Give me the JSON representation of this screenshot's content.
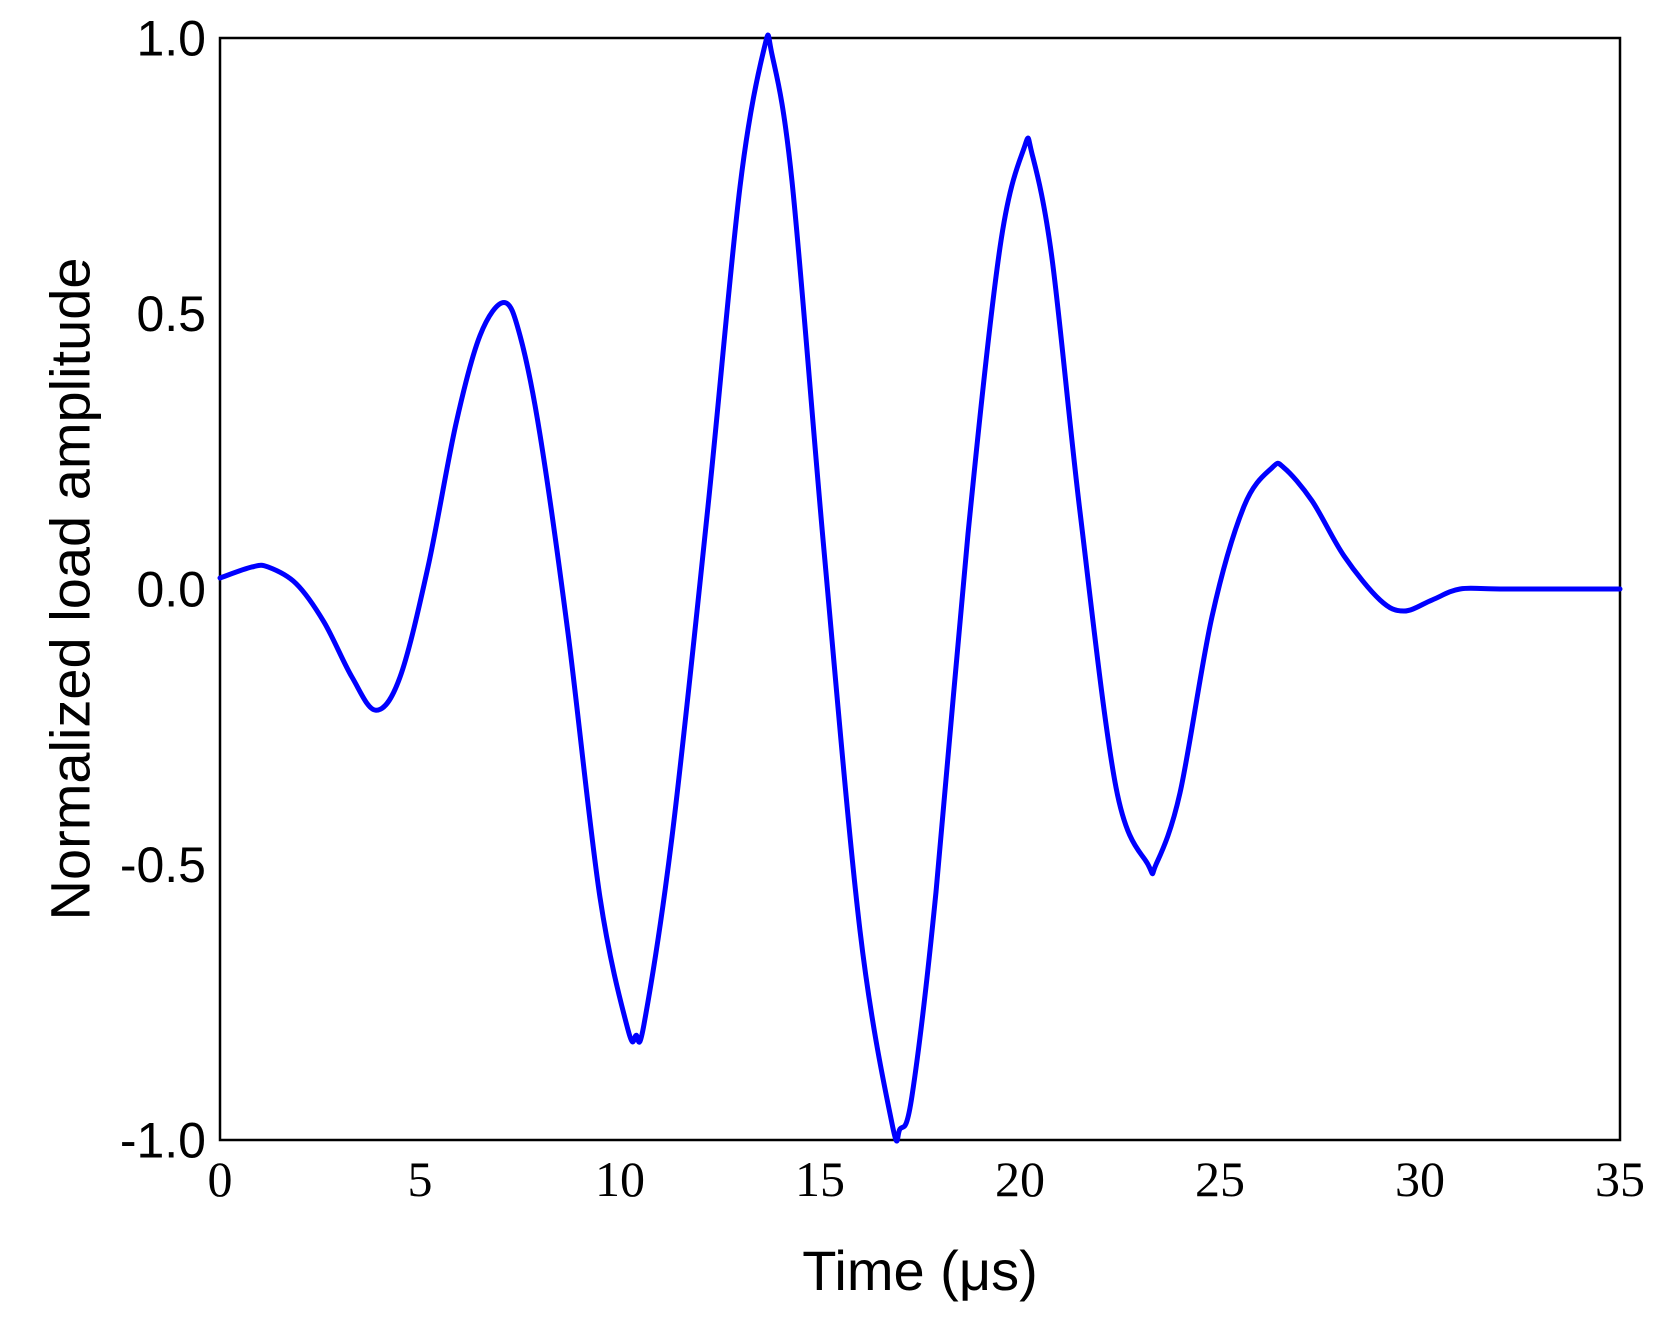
{
  "chart_data": {
    "type": "line",
    "title": "",
    "xlabel": "Time (μs)",
    "ylabel": "Normalized load amplitude",
    "xlim": [
      0,
      35
    ],
    "ylim": [
      -1.0,
      1.0
    ],
    "x_ticks": [
      0,
      5,
      10,
      15,
      20,
      25,
      30,
      35
    ],
    "x_tick_labels": [
      "0",
      "5",
      "10",
      "15",
      "20",
      "25",
      "30",
      "35"
    ],
    "y_ticks": [
      1.0,
      0.5,
      0.0,
      -0.5,
      -1.0
    ],
    "y_tick_labels": [
      "1.0",
      "0.5",
      "0.0",
      "-0.5",
      "-1.0"
    ],
    "grid": false,
    "legend": "none",
    "series": [
      {
        "color": "#0000ff",
        "x": [
          0,
          0.8,
          1.2,
          1.9,
          2.6,
          3.3,
          3.9,
          4.5,
          5.2,
          5.9,
          6.5,
          7.1,
          7.5,
          8.0,
          8.7,
          9.5,
          10.2,
          10.4,
          10.6,
          11.3,
          12.2,
          13.0,
          13.6,
          13.8,
          14.3,
          15.1,
          16.0,
          16.8,
          17.0,
          17.3,
          17.9,
          18.7,
          19.5,
          20.1,
          20.3,
          20.8,
          21.5,
          22.4,
          23.2,
          23.4,
          24.0,
          24.8,
          25.6,
          26.3,
          26.6,
          27.3,
          28.1,
          29.0,
          29.6,
          30.3,
          31.0,
          32.0,
          35.0
        ],
        "y": [
          0.02,
          0.04,
          0.04,
          0.01,
          -0.06,
          -0.16,
          -0.22,
          -0.16,
          0.04,
          0.3,
          0.46,
          0.52,
          0.46,
          0.28,
          -0.08,
          -0.56,
          -0.8,
          -0.81,
          -0.79,
          -0.45,
          0.15,
          0.73,
          0.98,
          0.97,
          0.74,
          0.07,
          -0.62,
          -0.97,
          -0.98,
          -0.92,
          -0.55,
          0.1,
          0.62,
          0.8,
          0.79,
          0.6,
          0.14,
          -0.36,
          -0.5,
          -0.5,
          -0.37,
          -0.05,
          0.15,
          0.22,
          0.22,
          0.16,
          0.06,
          -0.02,
          -0.04,
          -0.02,
          0.0,
          0.0,
          0.0
        ]
      }
    ]
  }
}
